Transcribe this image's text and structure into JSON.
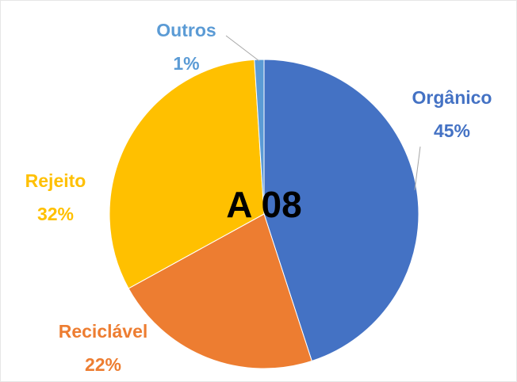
{
  "chart_data": {
    "type": "pie",
    "title": "A 08",
    "categories": [
      "Orgânico",
      "Reciclável",
      "Rejeito",
      "Outros"
    ],
    "values": [
      45,
      22,
      32,
      1
    ],
    "value_labels": [
      "45%",
      "22%",
      "32%",
      "1%"
    ],
    "colors": [
      "#4472c4",
      "#ed7d31",
      "#ffc000",
      "#5b9bd5"
    ]
  }
}
